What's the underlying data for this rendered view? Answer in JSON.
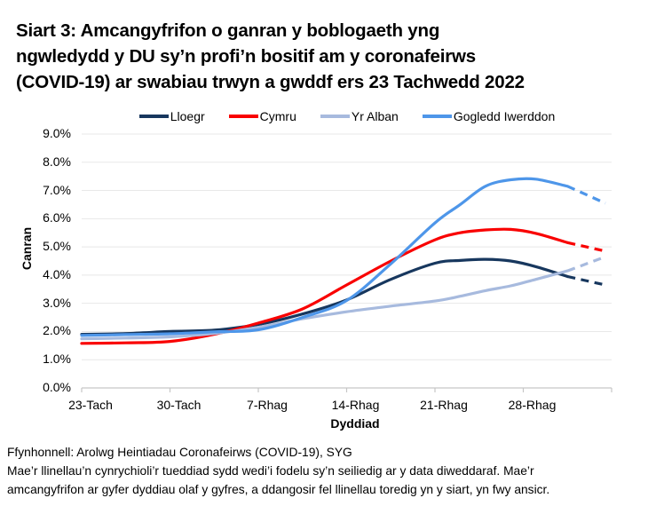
{
  "title": {
    "lines": [
      "Siart 3: Amcangyfrifon o ganran y boblogaeth yng",
      "ngwledydd y DU sy’n profi’n bositif am y coronafeirws",
      "(COVID-19) ar swabiau trwyn a gwddf ers 23 Tachwedd 2022"
    ]
  },
  "chart_data": {
    "type": "line",
    "title": "Siart 3: Amcangyfrifon o ganran y boblogaeth yng ngwledydd y DU sy’n profi’n bositif am y coronafeirws (COVID-19) ar swabiau trwyn a gwddf ers 23 Tachwedd 2022",
    "xlabel": "Dyddiad",
    "ylabel": "Canran",
    "ylim": [
      0,
      9
    ],
    "y_tick_labels": [
      "0.0%",
      "1.0%",
      "2.0%",
      "3.0%",
      "4.0%",
      "5.0%",
      "6.0%",
      "7.0%",
      "8.0%",
      "9.0%"
    ],
    "x_tick_labels": [
      "23-Tach",
      "30-Tach",
      "7-Rhag",
      "14-Rhag",
      "21-Rhag",
      "28-Rhag"
    ],
    "x_tick_days": [
      0,
      7,
      14,
      21,
      28,
      35
    ],
    "x_total_days": 42,
    "x_days": [
      0,
      3.5,
      7,
      10.5,
      14,
      17.5,
      21,
      24.5,
      28,
      30,
      32,
      34,
      36,
      38.5,
      41.5
    ],
    "dashed_from_day": 38.5,
    "dashed_note": "Dashed final segments = less certain estimates for the last days of the series",
    "grid": "horizontal",
    "legend_position": "top",
    "series": [
      {
        "name": "Lloegr",
        "color": "#17375E",
        "values": [
          1.9,
          1.93,
          2.0,
          2.05,
          2.25,
          2.62,
          3.12,
          3.85,
          4.42,
          4.52,
          4.56,
          4.5,
          4.3,
          3.95,
          3.65
        ]
      },
      {
        "name": "Cymru",
        "color": "#F90000",
        "values": [
          1.58,
          1.6,
          1.65,
          1.9,
          2.3,
          2.8,
          3.65,
          4.5,
          5.25,
          5.5,
          5.6,
          5.62,
          5.48,
          5.15,
          4.85
        ]
      },
      {
        "name": "Yr Alban",
        "color": "#A7BADE",
        "values": [
          1.74,
          1.77,
          1.81,
          1.93,
          2.15,
          2.45,
          2.7,
          2.9,
          3.08,
          3.25,
          3.45,
          3.62,
          3.85,
          4.15,
          4.65
        ]
      },
      {
        "name": "Gogledd Iwerddon",
        "color": "#4E96E9",
        "values": [
          1.86,
          1.89,
          1.92,
          1.99,
          2.06,
          2.5,
          3.1,
          4.4,
          5.85,
          6.5,
          7.15,
          7.38,
          7.4,
          7.15,
          6.55
        ]
      }
    ],
    "axis_color": "#C6C6C6",
    "grid_color": "#E8E8E8"
  },
  "footer": {
    "source": "Ffynhonnell: Arolwg Heintiadau Coronafeirws (COVID-19), SYG",
    "note_lines": [
      "Mae’r llinellau’n cynrychioli’r tueddiad sydd wedi’i fodelu sy’n seiliedig ar y data diweddaraf. Mae’r",
      "amcangyfrifon ar gyfer dyddiau olaf y gyfres, a ddangosir fel llinellau toredig yn y siart, yn fwy ansicr."
    ]
  }
}
